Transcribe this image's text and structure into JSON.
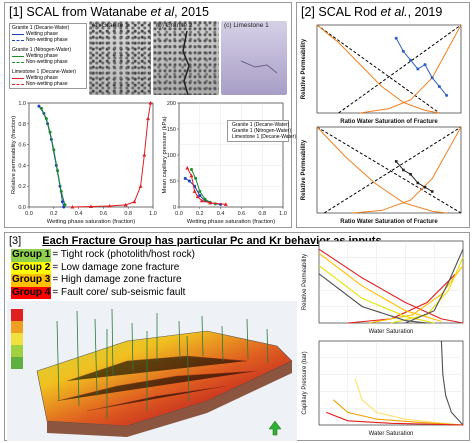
{
  "panel1": {
    "number": "[1]",
    "title_prefix": "SCAL from Watanabe ",
    "title_italic": "et al",
    "title_suffix": ", 2015",
    "photos": [
      {
        "label": "(a) Granite 1"
      },
      {
        "label": "(b) Granite 2"
      },
      {
        "label": "(c) Limestone 1"
      }
    ],
    "legend_photos": [
      {
        "header": "Granite 1 (Decane-Water)",
        "items": [
          "Wetting phase",
          "Non-wetting phase"
        ]
      },
      {
        "header": "Granite 1 (Nitrogen-Water)",
        "items": [
          "Wetting phase",
          "Non-wetting phase"
        ]
      },
      {
        "header": "Limestone 1 (Decane-Water)",
        "items": [
          "Wetting phase",
          "Non-wetting phase"
        ]
      }
    ],
    "legend_pc": [
      "Granite 1 (Decane-Water)",
      "Granite 1 (Nitrogen-Water)",
      "Limestone 1 (Decane-Water)"
    ]
  },
  "panel2": {
    "number": "[2]",
    "title_prefix": "SCAL Rod ",
    "title_italic": "et al.",
    "title_suffix": ", 2019"
  },
  "panel3": {
    "number": "[3]",
    "heading": "Each Fracture Group has particular Pc and Kr behavior as inputs.",
    "groups": [
      {
        "tag": "Group 1",
        "desc": "= Tight rock (photolith/host rock)",
        "color": "#8fd14f"
      },
      {
        "tag": "Group 2",
        "desc": "= Low damage zone fracture",
        "color": "#ffff00"
      },
      {
        "tag": "Group 3",
        "desc": "= High damage zone fracture",
        "color": "#ffc000"
      },
      {
        "tag": "Group 4",
        "desc": "= Fault core/ sub-seismic fault",
        "color": "#ff0000"
      }
    ]
  },
  "chart_data": [
    {
      "id": "watanabe_kr",
      "type": "line",
      "xlabel": "Wetting phase saturation (fraction)",
      "ylabel": "Relative permeability (fraction)",
      "xlim": [
        0,
        1
      ],
      "ylim": [
        0,
        1
      ],
      "xticks": [
        "0.0",
        "0.2",
        "0.4",
        "0.6",
        "0.8",
        "1.0"
      ],
      "yticks": [
        "0.0",
        "0.2",
        "0.4",
        "0.6",
        "0.8",
        "1.0"
      ],
      "series": [
        {
          "name": "Granite 1 (Decane-Water)",
          "color": "#1f3fbf",
          "marker": "circle",
          "points": [
            [
              0.08,
              0.97
            ],
            [
              0.12,
              0.9
            ],
            [
              0.15,
              0.8
            ],
            [
              0.18,
              0.65
            ],
            [
              0.22,
              0.4
            ],
            [
              0.25,
              0.2
            ],
            [
              0.27,
              0.05
            ],
            [
              0.28,
              0.0
            ]
          ]
        },
        {
          "name": "Granite 1 (Nitrogen-Water)",
          "color": "#1a8a2a",
          "marker": "circle",
          "points": [
            [
              0.1,
              0.95
            ],
            [
              0.14,
              0.85
            ],
            [
              0.17,
              0.72
            ],
            [
              0.2,
              0.55
            ],
            [
              0.23,
              0.35
            ],
            [
              0.26,
              0.15
            ],
            [
              0.29,
              0.02
            ]
          ]
        },
        {
          "name": "Limestone 1 (Decane-Water)",
          "color": "#e02020",
          "marker": "triangle",
          "points": [
            [
              0.35,
              0.0
            ],
            [
              0.5,
              0.005
            ],
            [
              0.65,
              0.01
            ],
            [
              0.78,
              0.02
            ],
            [
              0.85,
              0.05
            ],
            [
              0.9,
              0.2
            ],
            [
              0.93,
              0.5
            ],
            [
              0.96,
              0.85
            ],
            [
              0.98,
              1.0
            ]
          ]
        }
      ]
    },
    {
      "id": "watanabe_pc",
      "type": "line",
      "xlabel": "Wetting phase saturation (fraction)",
      "ylabel": "Mean capillary pressure (kPa)",
      "xlim": [
        0,
        1
      ],
      "ylim": [
        0,
        200
      ],
      "xticks": [
        "0.0",
        "0.2",
        "0.4",
        "0.6",
        "0.8",
        "1.0"
      ],
      "yticks": [
        "0",
        "50",
        "100",
        "150",
        "200"
      ],
      "series": [
        {
          "name": "Granite 1 (Decane-Water)",
          "color": "#1f3fbf",
          "marker": "circle",
          "points": [
            [
              0.06,
              55
            ],
            [
              0.1,
              50
            ],
            [
              0.15,
              40
            ],
            [
              0.2,
              22
            ],
            [
              0.25,
              12
            ],
            [
              0.3,
              8
            ],
            [
              0.4,
              5
            ]
          ]
        },
        {
          "name": "Granite 1 (Nitrogen-Water)",
          "color": "#1a8a2a",
          "marker": "circle",
          "points": [
            [
              0.12,
              72
            ],
            [
              0.16,
              55
            ],
            [
              0.2,
              30
            ],
            [
              0.25,
              15
            ],
            [
              0.3,
              9
            ],
            [
              0.35,
              6
            ]
          ]
        },
        {
          "name": "Limestone 1 (Decane-Water)",
          "color": "#e02020",
          "marker": "triangle",
          "points": [
            [
              0.08,
              75
            ],
            [
              0.12,
              60
            ],
            [
              0.15,
              30
            ],
            [
              0.18,
              20
            ],
            [
              0.22,
              12
            ],
            [
              0.3,
              8
            ],
            [
              0.45,
              5
            ]
          ]
        }
      ]
    },
    {
      "id": "rod_kr_1",
      "type": "line",
      "xlabel": "Ratio Water Saturation of Fracture",
      "ylabel": "Relative Permeability",
      "xlim": [
        0,
        1
      ],
      "ylim": [
        0,
        1
      ],
      "series": [
        {
          "color": "#000000",
          "dash": true,
          "points": [
            [
              0.0,
              1.0
            ],
            [
              0.85,
              0.0
            ]
          ]
        },
        {
          "color": "#000000",
          "dash": true,
          "points": [
            [
              0.15,
              0.0
            ],
            [
              1.0,
              1.0
            ]
          ]
        },
        {
          "color": "#f08020",
          "points": [
            [
              0.0,
              1.0
            ],
            [
              0.15,
              0.8
            ],
            [
              0.3,
              0.55
            ],
            [
              0.45,
              0.3
            ],
            [
              0.6,
              0.12
            ],
            [
              0.75,
              0.03
            ],
            [
              0.85,
              0.0
            ]
          ]
        },
        {
          "color": "#f08020",
          "points": [
            [
              0.3,
              0.0
            ],
            [
              0.5,
              0.05
            ],
            [
              0.65,
              0.15
            ],
            [
              0.8,
              0.4
            ],
            [
              0.9,
              0.7
            ],
            [
              1.0,
              1.0
            ]
          ]
        },
        {
          "color": "#3060c0",
          "marker": "circle",
          "points": [
            [
              0.55,
              0.85
            ],
            [
              0.6,
              0.7
            ],
            [
              0.65,
              0.6
            ],
            [
              0.7,
              0.5
            ],
            [
              0.75,
              0.55
            ],
            [
              0.8,
              0.4
            ],
            [
              0.85,
              0.3
            ],
            [
              0.9,
              0.2
            ]
          ]
        }
      ]
    },
    {
      "id": "rod_kr_2",
      "type": "line",
      "xlabel": "Ratio Water Saturation of Fracture",
      "ylabel": "Relative Permeability",
      "xlim": [
        0,
        1
      ],
      "ylim": [
        0,
        1
      ],
      "series": [
        {
          "color": "#000000",
          "dash": true,
          "points": [
            [
              0.0,
              1.0
            ],
            [
              1.0,
              0.0
            ]
          ]
        },
        {
          "color": "#000000",
          "dash": true,
          "points": [
            [
              0.05,
              0.0
            ],
            [
              1.0,
              1.0
            ]
          ]
        },
        {
          "color": "#f08020",
          "points": [
            [
              0.0,
              1.0
            ],
            [
              0.2,
              0.65
            ],
            [
              0.4,
              0.35
            ],
            [
              0.6,
              0.12
            ],
            [
              0.8,
              0.02
            ],
            [
              0.9,
              0.0
            ]
          ]
        },
        {
          "color": "#f08020",
          "points": [
            [
              0.25,
              0.0
            ],
            [
              0.45,
              0.03
            ],
            [
              0.65,
              0.15
            ],
            [
              0.8,
              0.4
            ],
            [
              0.9,
              0.7
            ],
            [
              1.0,
              1.0
            ]
          ]
        },
        {
          "color": "#222222",
          "marker": "square",
          "points": [
            [
              0.55,
              0.6
            ],
            [
              0.6,
              0.5
            ],
            [
              0.65,
              0.45
            ],
            [
              0.7,
              0.35
            ],
            [
              0.75,
              0.3
            ],
            [
              0.8,
              0.25
            ]
          ]
        }
      ]
    },
    {
      "id": "group_kr",
      "type": "line",
      "xlabel": "Water Saturation",
      "ylabel": "Relative Permeability",
      "xlim": [
        0,
        1
      ],
      "ylim": [
        0,
        1
      ],
      "series": [
        {
          "color": "#e02020",
          "points": [
            [
              0.0,
              0.9
            ],
            [
              0.3,
              0.55
            ],
            [
              0.6,
              0.25
            ],
            [
              0.85,
              0.05
            ],
            [
              1.0,
              0.0
            ]
          ]
        },
        {
          "color": "#e02020",
          "points": [
            [
              0.2,
              0.0
            ],
            [
              0.5,
              0.05
            ],
            [
              0.75,
              0.25
            ],
            [
              0.95,
              0.6
            ]
          ]
        },
        {
          "color": "#ffc000",
          "points": [
            [
              0.0,
              0.85
            ],
            [
              0.3,
              0.45
            ],
            [
              0.6,
              0.15
            ],
            [
              0.85,
              0.02
            ]
          ]
        },
        {
          "color": "#ffc000",
          "points": [
            [
              0.35,
              0.0
            ],
            [
              0.65,
              0.1
            ],
            [
              0.85,
              0.35
            ],
            [
              1.0,
              0.7
            ]
          ]
        },
        {
          "color": "#e8e000",
          "points": [
            [
              0.0,
              0.7
            ],
            [
              0.3,
              0.3
            ],
            [
              0.6,
              0.08
            ],
            [
              0.8,
              0.0
            ]
          ]
        },
        {
          "color": "#e8e000",
          "points": [
            [
              0.5,
              0.0
            ],
            [
              0.75,
              0.1
            ],
            [
              0.9,
              0.4
            ],
            [
              1.0,
              0.8
            ]
          ]
        },
        {
          "color": "#505050",
          "points": [
            [
              0.0,
              0.6
            ],
            [
              0.3,
              0.2
            ],
            [
              0.6,
              0.03
            ],
            [
              0.75,
              0.0
            ]
          ]
        },
        {
          "color": "#505050",
          "points": [
            [
              0.6,
              0.0
            ],
            [
              0.8,
              0.15
            ],
            [
              0.9,
              0.5
            ],
            [
              1.0,
              0.9
            ]
          ]
        }
      ]
    },
    {
      "id": "group_pc",
      "type": "line",
      "xlabel": "Water Saturation",
      "ylabel": "Capillary Pressure (bar)",
      "xlim": [
        0,
        1
      ],
      "ylim": [
        0,
        1
      ],
      "series": [
        {
          "color": "#505050",
          "points": [
            [
              0.85,
              1.0
            ],
            [
              0.86,
              0.6
            ],
            [
              0.88,
              0.35
            ],
            [
              0.92,
              0.15
            ],
            [
              1.0,
              0.0
            ]
          ]
        },
        {
          "color": "#ffe066",
          "points": [
            [
              0.25,
              0.55
            ],
            [
              0.3,
              0.3
            ],
            [
              0.4,
              0.15
            ],
            [
              0.6,
              0.07
            ],
            [
              0.8,
              0.03
            ],
            [
              1.0,
              0.0
            ]
          ]
        },
        {
          "color": "#f0a000",
          "points": [
            [
              0.1,
              0.3
            ],
            [
              0.2,
              0.15
            ],
            [
              0.4,
              0.07
            ],
            [
              0.7,
              0.03
            ],
            [
              1.0,
              0.0
            ]
          ]
        },
        {
          "color": "#e02020",
          "points": [
            [
              0.05,
              0.15
            ],
            [
              0.2,
              0.05
            ],
            [
              0.5,
              0.02
            ],
            [
              1.0,
              0.0
            ]
          ]
        }
      ]
    }
  ]
}
